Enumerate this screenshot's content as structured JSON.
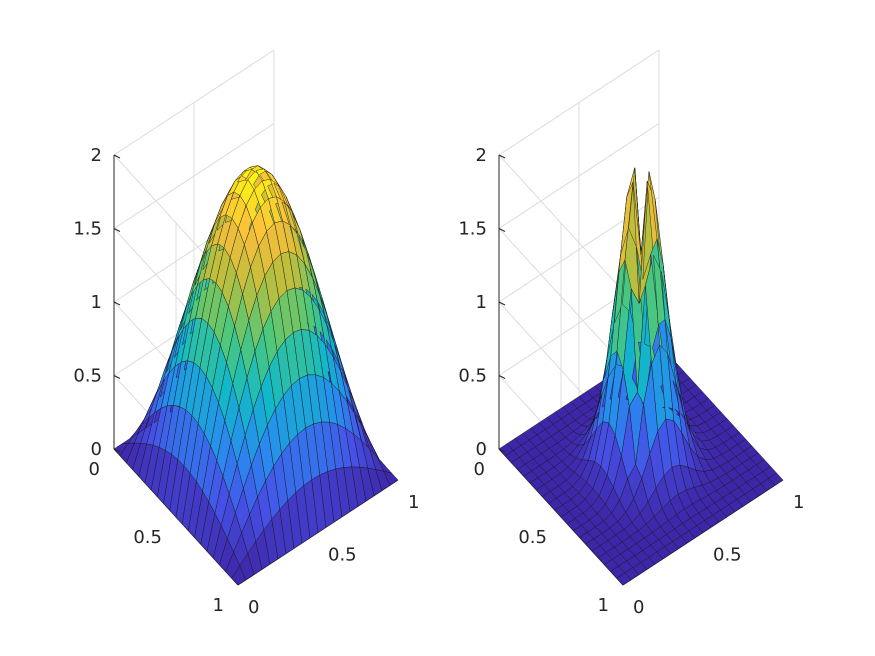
{
  "chart_data": [
    {
      "type": "surface",
      "view": "3d",
      "x": [
        0,
        0.05,
        0.1,
        0.15,
        0.2,
        0.25,
        0.3,
        0.35,
        0.4,
        0.45,
        0.5,
        0.55,
        0.6,
        0.65,
        0.7,
        0.75,
        0.8,
        0.85,
        0.9,
        0.95,
        1
      ],
      "y": [
        0,
        0.05,
        0.1,
        0.15,
        0.2,
        0.25,
        0.3,
        0.35,
        0.4,
        0.45,
        0.5,
        0.55,
        0.6,
        0.65,
        0.7,
        0.75,
        0.8,
        0.85,
        0.9,
        0.95,
        1
      ],
      "surface": "z = 2 * sin(pi*x) * sin(pi*y)",
      "z_peak": 2,
      "xlim": [
        0,
        1
      ],
      "ylim": [
        0,
        1
      ],
      "zlim": [
        0,
        2
      ],
      "xticks": [
        "0",
        "0.5",
        "1"
      ],
      "yticks": [
        "0",
        "0.5",
        "1"
      ],
      "zticks": [
        "0",
        "0.5",
        "1",
        "1.5",
        "2"
      ],
      "colormap": "parula",
      "grid": true
    },
    {
      "type": "surface",
      "view": "3d",
      "x": [
        0,
        0.05,
        0.1,
        0.15,
        0.2,
        0.25,
        0.3,
        0.35,
        0.4,
        0.45,
        0.5,
        0.55,
        0.6,
        0.65,
        0.7,
        0.75,
        0.8,
        0.85,
        0.9,
        0.95,
        1
      ],
      "y": [
        0,
        0.05,
        0.1,
        0.15,
        0.2,
        0.25,
        0.3,
        0.35,
        0.4,
        0.45,
        0.5,
        0.55,
        0.6,
        0.65,
        0.7,
        0.75,
        0.8,
        0.85,
        0.9,
        0.95,
        1
      ],
      "surface": "sharp peak at center with narrow ridges; z = 2.2 at (0.5, 0.5)",
      "z_peak": 2.2,
      "xlim": [
        0,
        1
      ],
      "ylim": [
        0,
        1
      ],
      "zlim": [
        0,
        2
      ],
      "xticks": [
        "0",
        "0.5",
        "1"
      ],
      "yticks": [
        "0",
        "0.5",
        "1"
      ],
      "zticks": [
        "0",
        "0.5",
        "1",
        "1.5",
        "2"
      ],
      "colormap": "parula",
      "grid": true
    }
  ]
}
